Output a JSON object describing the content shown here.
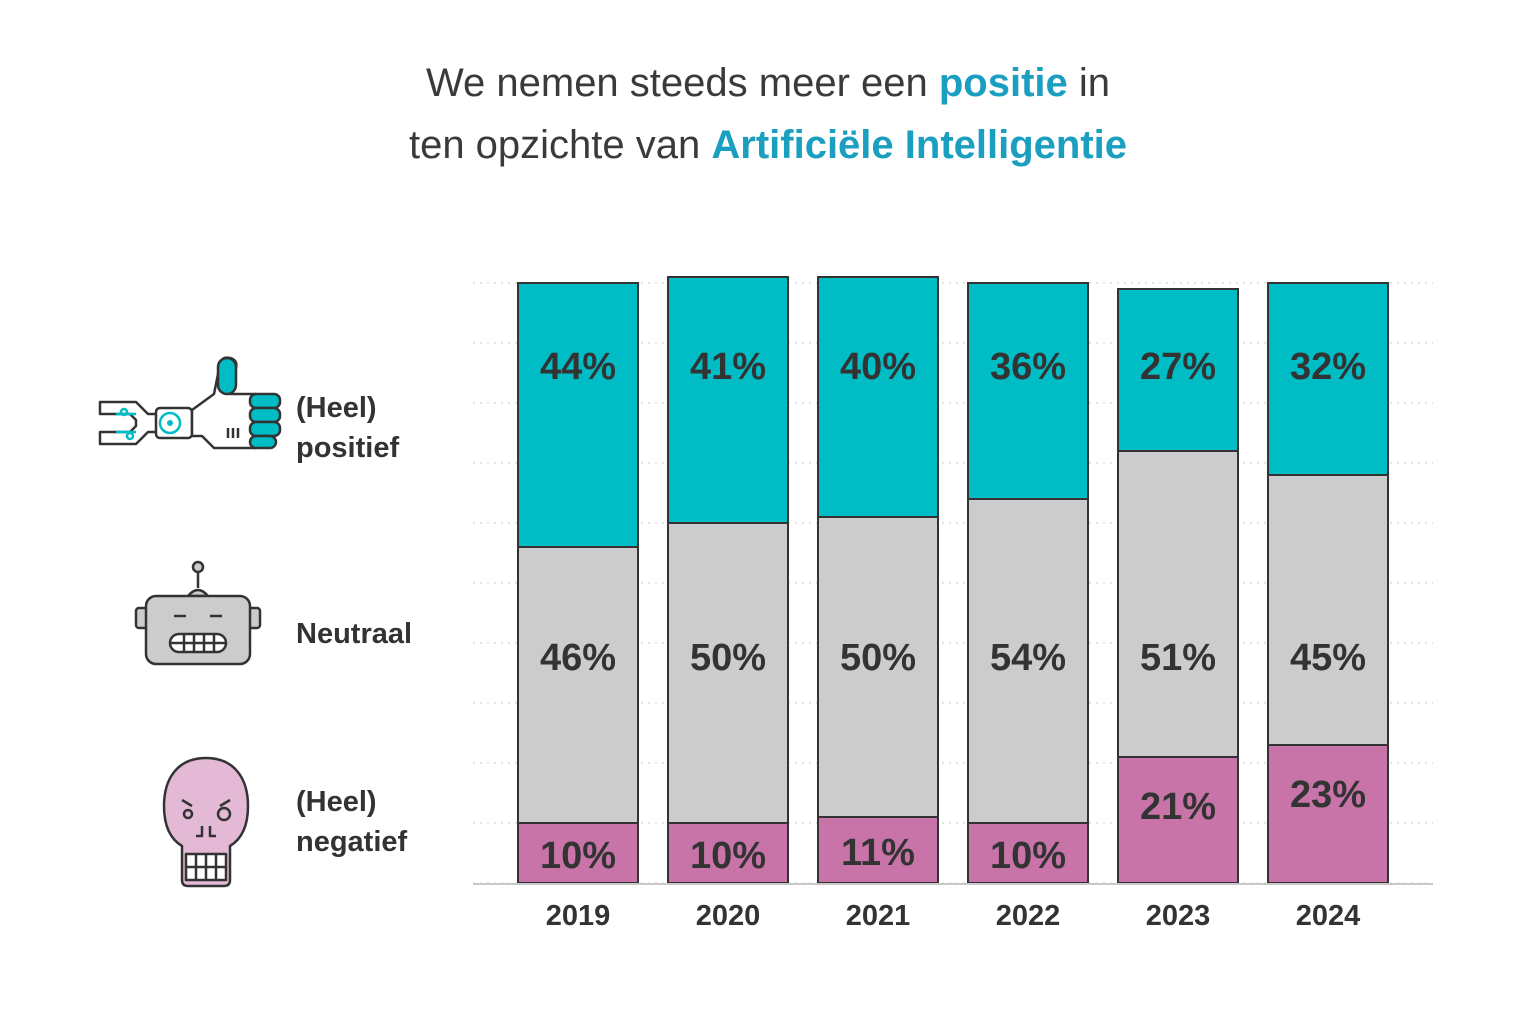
{
  "title": {
    "line1_pre": "We nemen steeds meer een ",
    "line1_hl": "positie",
    "line1_post": " in",
    "line2_pre": "ten opzichte van ",
    "line2_hl": "Artificiële Intelligentie"
  },
  "legend": {
    "positive": {
      "line1": "(Heel)",
      "line2": "positief",
      "icon": "robot-thumbs-up-icon"
    },
    "neutral": {
      "line1": "Neutraal",
      "icon": "robot-head-icon"
    },
    "negative": {
      "line1": "(Heel)",
      "line2": "negatief",
      "icon": "skull-icon"
    }
  },
  "colors": {
    "positive": "#00bcc4",
    "neutral": "#cccccc",
    "negative": "#c874a8",
    "outline": "#333333",
    "accent": "#1a9fc0"
  },
  "chart_data": {
    "type": "bar",
    "stacked": true,
    "categories": [
      "2019",
      "2020",
      "2021",
      "2022",
      "2023",
      "2024"
    ],
    "series": [
      {
        "name": "(Heel) negatief",
        "key": "negative",
        "values": [
          10,
          10,
          11,
          10,
          21,
          23
        ],
        "labels": [
          "10%",
          "10%",
          "11%",
          "10%",
          "21%",
          "23%"
        ]
      },
      {
        "name": "Neutraal",
        "key": "neutral",
        "values": [
          46,
          50,
          50,
          54,
          51,
          45
        ],
        "labels": [
          "46%",
          "50%",
          "50%",
          "54%",
          "51%",
          "45%"
        ]
      },
      {
        "name": "(Heel) positief",
        "key": "positive",
        "values": [
          44,
          41,
          40,
          36,
          27,
          32
        ],
        "labels": [
          "44%",
          "41%",
          "40%",
          "36%",
          "27%",
          "32%"
        ]
      }
    ],
    "ylim": [
      0,
      100
    ],
    "grid": true
  }
}
